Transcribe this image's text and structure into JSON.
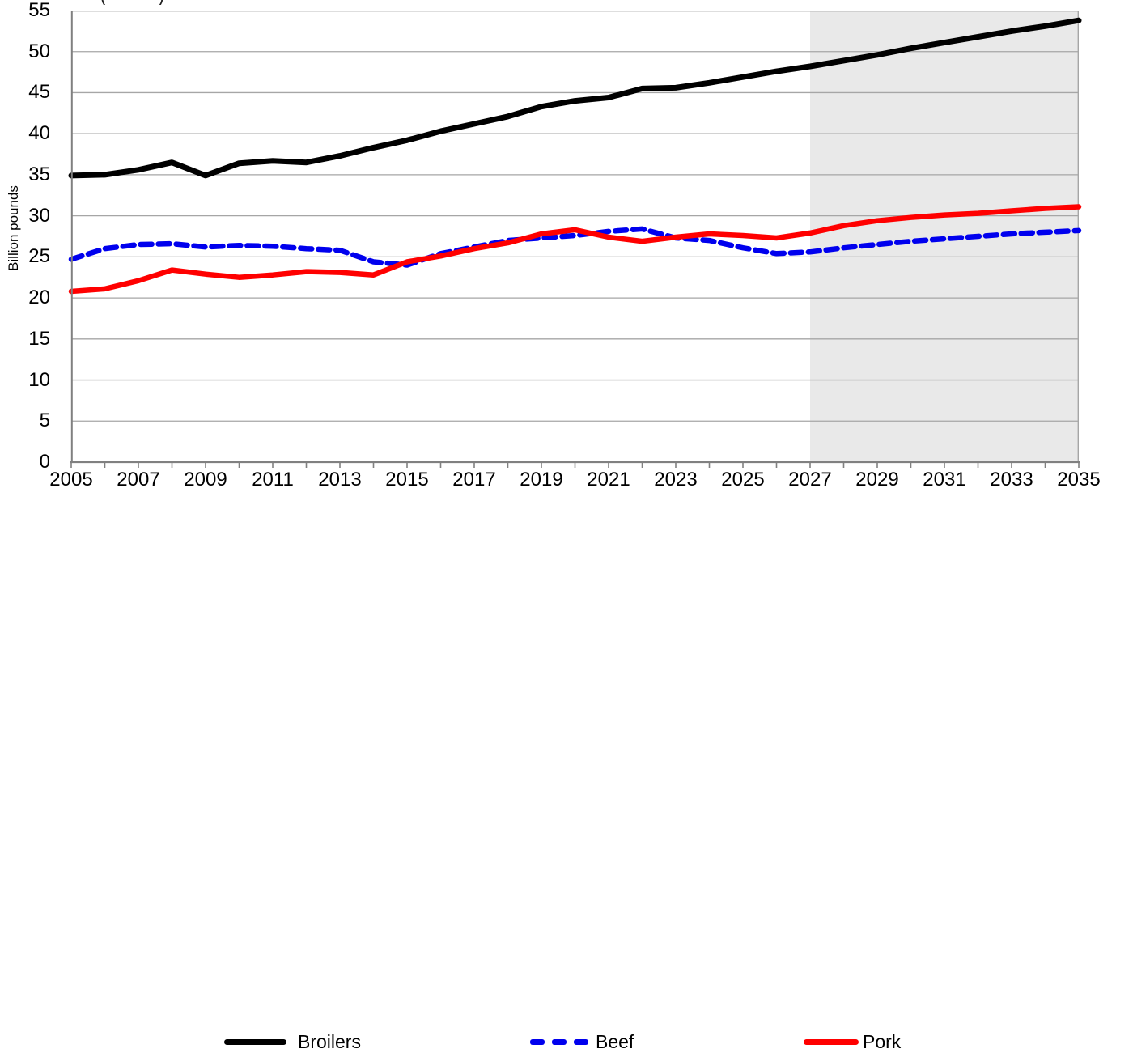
{
  "chart_data": {
    "type": "line",
    "ylabel": "Billion pounds",
    "partial_title": "( )",
    "x": [
      2005,
      2006,
      2007,
      2008,
      2009,
      2010,
      2011,
      2012,
      2013,
      2014,
      2015,
      2016,
      2017,
      2018,
      2019,
      2020,
      2021,
      2022,
      2023,
      2024,
      2025,
      2026,
      2027,
      2028,
      2029,
      2030,
      2031,
      2032,
      2033,
      2034,
      2035
    ],
    "series": [
      {
        "name": "Broilers",
        "color": "#000000",
        "dash": null,
        "width": 7,
        "values": [
          34.9,
          35.0,
          35.6,
          36.5,
          34.9,
          36.4,
          36.7,
          36.5,
          37.3,
          38.3,
          39.2,
          40.3,
          41.2,
          42.1,
          43.3,
          44.0,
          44.4,
          45.5,
          45.6,
          46.2,
          46.9,
          47.6,
          48.2,
          48.9,
          49.6,
          50.4,
          51.1,
          51.8,
          52.5,
          53.1,
          53.8
        ]
      },
      {
        "name": "Beef",
        "color": "#0000EE",
        "dash": "14 8",
        "width": 6.5,
        "values": [
          24.7,
          26.0,
          26.5,
          26.6,
          26.2,
          26.4,
          26.3,
          26.0,
          25.8,
          24.4,
          24.0,
          25.4,
          26.2,
          27.0,
          27.3,
          27.6,
          28.1,
          28.4,
          27.3,
          27.0,
          26.1,
          25.4,
          25.6,
          26.1,
          26.5,
          26.9,
          27.2,
          27.5,
          27.8,
          28.0,
          28.2
        ]
      },
      {
        "name": "Pork",
        "color": "#FF0000",
        "dash": null,
        "width": 6.5,
        "values": [
          20.8,
          21.1,
          22.1,
          23.4,
          22.9,
          22.5,
          22.8,
          23.2,
          23.1,
          22.8,
          24.4,
          25.1,
          26.0,
          26.7,
          27.8,
          28.3,
          27.4,
          26.9,
          27.4,
          27.8,
          27.6,
          27.3,
          27.9,
          28.8,
          29.4,
          29.8,
          30.1,
          30.3,
          30.6,
          30.9,
          31.1
        ]
      }
    ],
    "ylim": [
      0,
      55
    ],
    "ytick_labels": [
      "0",
      "5",
      "10",
      "15",
      "20",
      "25",
      "30",
      "35",
      "40",
      "45",
      "50",
      "55"
    ],
    "xtick_labels": [
      "2005",
      "2007",
      "2009",
      "2011",
      "2013",
      "2015",
      "2017",
      "2019",
      "2021",
      "2023",
      "2025",
      "2027",
      "2029",
      "2031",
      "2033",
      "2035"
    ],
    "grid": "on",
    "projection": {
      "start_year": 2027,
      "end_year": 2035,
      "shade_color": "#E9E9E9"
    },
    "colors": {
      "grid": "#A6A6A6",
      "axis": "#808080"
    },
    "legend_position": "bottom"
  },
  "legend": {
    "items": [
      "Broilers",
      "Beef",
      "Pork"
    ]
  }
}
